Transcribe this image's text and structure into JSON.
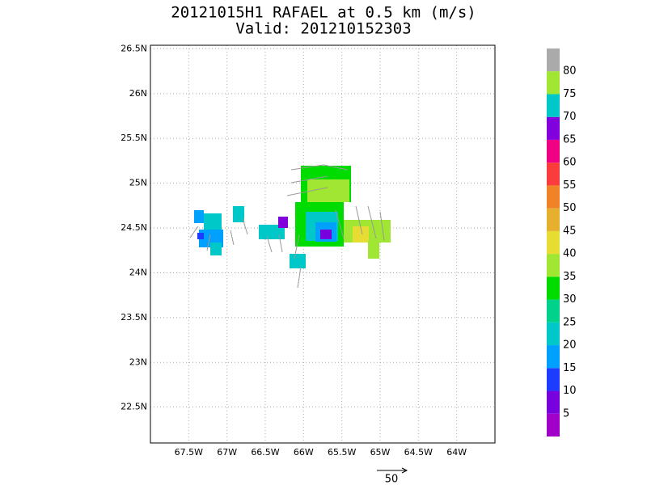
{
  "chart_data": {
    "type": "map",
    "title": "20121015H1 RAFAEL at 0.5 km (m/s)",
    "subtitle": "Valid: 201210152303",
    "xlim": [
      -68,
      -63.5
    ],
    "ylim": [
      22.1,
      26.54
    ],
    "xticks": [
      {
        "value": -67.5,
        "label": "67.5W"
      },
      {
        "value": -67,
        "label": "67W"
      },
      {
        "value": -66.5,
        "label": "66.5W"
      },
      {
        "value": -66,
        "label": "66W"
      },
      {
        "value": -65.5,
        "label": "65.5W"
      },
      {
        "value": -65,
        "label": "65W"
      },
      {
        "value": -64.5,
        "label": "64.5W"
      },
      {
        "value": -64,
        "label": "64W"
      }
    ],
    "yticks": [
      {
        "value": 22.5,
        "label": "22.5N"
      },
      {
        "value": 23,
        "label": "23N"
      },
      {
        "value": 23.5,
        "label": "23.5N"
      },
      {
        "value": 24,
        "label": "24N"
      },
      {
        "value": 24.5,
        "label": "24.5N"
      },
      {
        "value": 25,
        "label": "25N"
      },
      {
        "value": 25.5,
        "label": "25.5N"
      },
      {
        "value": 26,
        "label": "26N"
      },
      {
        "value": 26.5,
        "label": "26.5N"
      }
    ],
    "grid": true,
    "colorbar": {
      "levels": [
        5,
        10,
        15,
        20,
        25,
        30,
        35,
        40,
        45,
        50,
        55,
        60,
        65,
        70,
        75,
        80
      ],
      "colors": [
        "#a000c8",
        "#7800dc",
        "#1e3cff",
        "#00a0ff",
        "#00c8c8",
        "#00d28c",
        "#00dc00",
        "#a0e632",
        "#e6dc32",
        "#e6af2d",
        "#f08228",
        "#fa3c3c",
        "#f00082",
        "#8200dc",
        "#00c8c8",
        "#a0e632",
        "#aaaaaa"
      ]
    },
    "reference_vector": 50
  }
}
